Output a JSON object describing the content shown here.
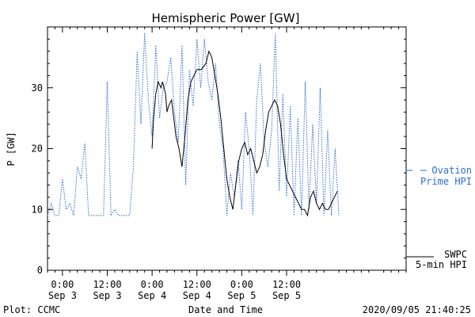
{
  "chart_data": {
    "type": "line",
    "title": "Hemispheric Power [GW]",
    "ylabel": "P [GW]",
    "xlabel": "Date and Time",
    "ylim": [
      0,
      40
    ],
    "xlim": [
      -2,
      46
    ],
    "yticks": [
      0,
      10,
      20,
      30
    ],
    "xticks": [
      {
        "x": 0,
        "time": "0:00",
        "date": "Sep 3"
      },
      {
        "x": 6,
        "time": "12:00",
        "date": "Sep 3"
      },
      {
        "x": 12,
        "time": "0:00",
        "date": "Sep 4"
      },
      {
        "x": 18,
        "time": "12:00",
        "date": "Sep 4"
      },
      {
        "x": 24,
        "time": "0:00",
        "date": "Sep 5"
      },
      {
        "x": 30,
        "time": "12:00",
        "date": "Sep 5"
      }
    ],
    "grid": false,
    "legend_position": "right",
    "series": [
      {
        "name": "SWPC 5-min HPI",
        "legend_lines": [
          "SWPC",
          "5-min HPI"
        ],
        "color": "#000000",
        "style": "solid",
        "x": [
          12.0,
          12.2,
          12.5,
          12.8,
          13.2,
          13.4,
          13.8,
          14.0,
          14.2,
          14.6,
          14.8,
          15.2,
          15.6,
          16.0,
          16.4,
          16.8,
          17.2,
          17.6,
          18.0,
          18.6,
          19.2,
          19.6,
          20.0,
          20.4,
          20.8,
          21.2,
          21.6,
          22.0,
          22.4,
          22.8,
          23.2,
          23.6,
          24.0,
          24.4,
          24.8,
          25.2,
          25.6,
          26.0,
          26.4,
          26.8,
          27.2,
          27.6,
          28.0,
          28.4,
          28.8,
          29.2,
          29.6,
          30.0,
          30.4,
          30.8,
          31.2,
          31.6,
          32.0,
          32.4,
          32.8,
          33.2,
          33.6,
          34.0,
          34.4,
          34.8,
          35.2,
          35.6,
          36.0,
          36.4,
          36.8
        ],
        "y": [
          20,
          25,
          29,
          31,
          30,
          31,
          29,
          26,
          27,
          28,
          26,
          22,
          20,
          17,
          22,
          28,
          31,
          32,
          33,
          33,
          34,
          36,
          35,
          32,
          29,
          25,
          20,
          15,
          12,
          10,
          14,
          18,
          20,
          21,
          19,
          20,
          18,
          16,
          17,
          19,
          23,
          26,
          27,
          28,
          27,
          24,
          19,
          15,
          14,
          13,
          12,
          11,
          10,
          10,
          9,
          12,
          13,
          11,
          10,
          11,
          10,
          10,
          11,
          12,
          13
        ]
      },
      {
        "name": "Ovation Prime HPI",
        "legend_lines": [
          "Ovation",
          "Prime HPI"
        ],
        "color": "#2a6fd0",
        "style": "dotted",
        "x": [
          -2.0,
          -1.5,
          -1.0,
          -0.5,
          0.0,
          0.5,
          1.0,
          1.5,
          2.0,
          2.5,
          3.0,
          3.5,
          4.0,
          4.5,
          5.0,
          5.5,
          6.0,
          6.5,
          7.0,
          7.5,
          8.0,
          8.5,
          9.0,
          9.5,
          10.0,
          10.5,
          11.0,
          11.5,
          12.0,
          12.5,
          13.0,
          13.5,
          14.0,
          14.5,
          15.0,
          15.5,
          16.0,
          16.5,
          17.0,
          17.5,
          18.0,
          18.5,
          19.0,
          19.5,
          20.0,
          20.5,
          21.0,
          21.5,
          22.0,
          22.5,
          23.0,
          23.5,
          24.0,
          24.5,
          25.0,
          25.5,
          26.0,
          26.5,
          27.0,
          27.5,
          28.0,
          28.5,
          29.0,
          29.5,
          30.0,
          30.5,
          31.0,
          31.5,
          32.0,
          32.5,
          33.0,
          33.5,
          34.0,
          34.5,
          35.0,
          35.5,
          36.0,
          36.5,
          37.0
        ],
        "y": [
          9,
          11,
          9,
          9,
          15,
          10,
          11,
          9,
          17,
          15,
          21,
          9,
          9,
          9,
          9,
          9,
          31,
          9,
          10,
          9,
          9,
          9,
          9,
          17,
          36,
          24,
          39,
          28,
          22,
          37,
          25,
          30,
          31,
          35,
          26,
          21,
          37,
          14,
          33,
          27,
          38,
          30,
          38,
          31,
          28,
          34,
          24,
          20,
          9,
          16,
          12,
          18,
          10,
          26,
          20,
          9,
          28,
          34,
          21,
          17,
          23,
          39,
          13,
          29,
          12,
          27,
          9,
          25,
          9,
          31,
          10,
          24,
          11,
          30,
          9,
          23,
          9,
          20,
          9
        ]
      }
    ],
    "plot_label": "Plot: CCMC",
    "timestamp": "2020/09/05 21:40:25"
  }
}
